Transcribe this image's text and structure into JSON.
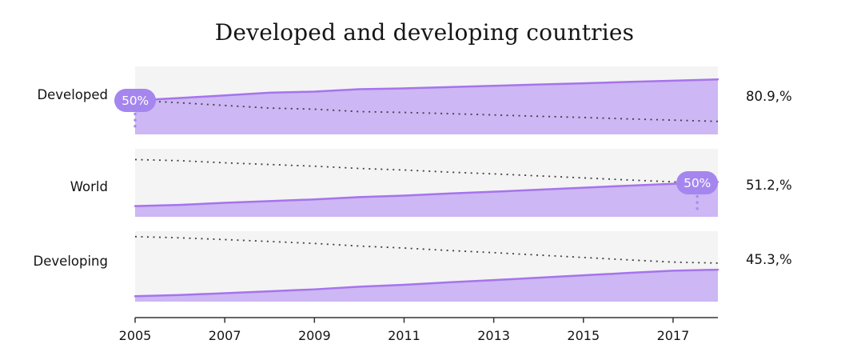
{
  "title": "Developed and developing countries",
  "panels": [
    {
      "label": "Developed",
      "value": "80.9,%",
      "badge": "50%"
    },
    {
      "label": "World",
      "value": "51.2,%",
      "badge": "50%"
    },
    {
      "label": "Developing",
      "value": "45.3,%",
      "badge": null
    }
  ],
  "x_axis": {
    "ticks": [
      "2005",
      "2007",
      "2009",
      "2011",
      "2013",
      "2015",
      "2017"
    ]
  },
  "colors": {
    "area_fill": "#cdb7f4",
    "line_stroke": "#a674ec",
    "badge_bg": "#a586ee",
    "badge_dots": "#a78cef",
    "panel_bg": "#f4f4f4",
    "dotted_line": "#3f3f3f",
    "axis": "#333333",
    "text": "#131313"
  },
  "chart_data": {
    "type": "area",
    "title": "Developed and developing countries",
    "x": [
      2005,
      2006,
      2007,
      2008,
      2009,
      2010,
      2011,
      2012,
      2013,
      2014,
      2015,
      2016,
      2017,
      2018
    ],
    "x_ticks_shown": [
      "2005",
      "2007",
      "2009",
      "2011",
      "2013",
      "2015",
      "2017"
    ],
    "ylim": [
      0,
      100
    ],
    "unit": "%",
    "grid": "off",
    "legend_position": "none",
    "panels_stacked_vertically": true,
    "dotted_line_meaning": "complement of series (100 - value)",
    "badge_threshold": 50,
    "series": [
      {
        "name": "Developed",
        "values": [
          50.0,
          53.5,
          57.4,
          61.3,
          62.9,
          66.5,
          67.7,
          69.5,
          71.4,
          73.4,
          75.1,
          77.2,
          79.0,
          80.9
        ],
        "end_label": "80.9,%",
        "crossed_50_badge": "50%"
      },
      {
        "name": "World",
        "values": [
          15.8,
          17.5,
          20.6,
          23.1,
          25.6,
          28.9,
          31.2,
          34.3,
          36.9,
          39.8,
          42.8,
          45.8,
          48.6,
          51.2
        ],
        "end_label": "51.2,%",
        "crossed_50_badge": "50%"
      },
      {
        "name": "Developing",
        "values": [
          7.7,
          9.4,
          11.9,
          14.6,
          17.4,
          21.1,
          23.9,
          27.4,
          30.5,
          33.9,
          37.3,
          40.7,
          43.9,
          45.3
        ],
        "end_label": "45.3,%",
        "crossed_50_badge": null
      }
    ]
  }
}
